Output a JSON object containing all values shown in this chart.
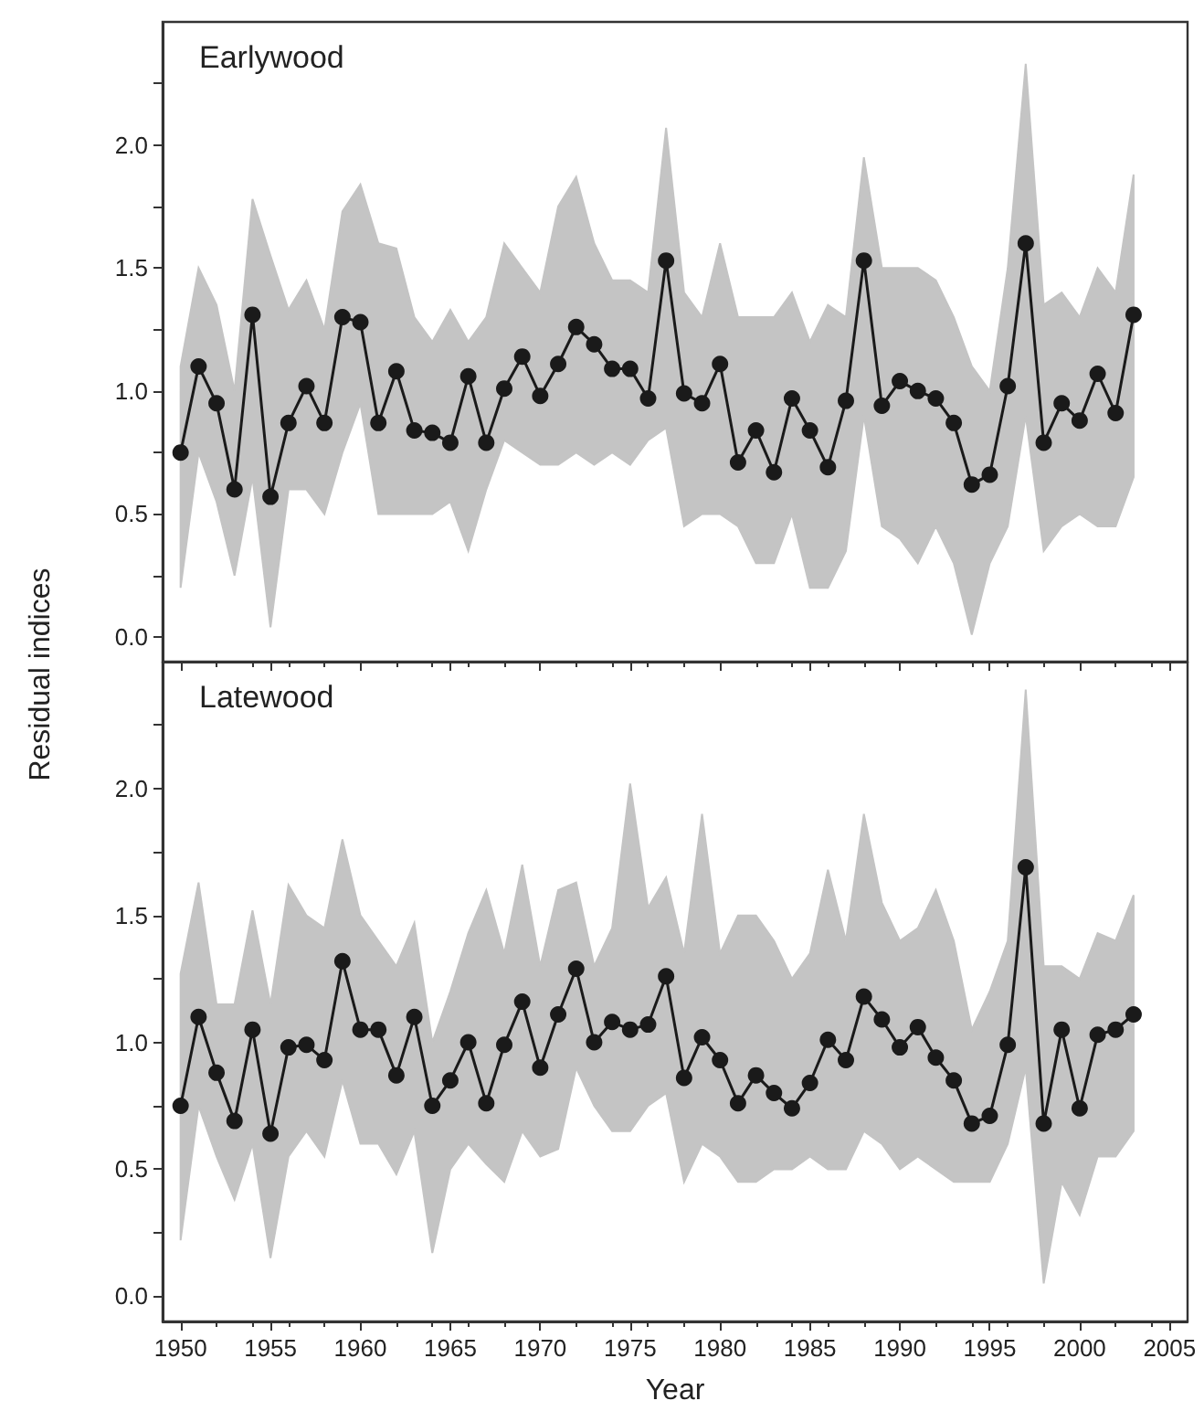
{
  "chart_data": [
    {
      "type": "line",
      "title": "Earlywood",
      "ylabel": "Residual indices",
      "tick_labels": "y",
      "marker": "circle",
      "line_style": "solid",
      "grid": false,
      "x": [
        1950,
        1951,
        1952,
        1953,
        1954,
        1955,
        1956,
        1957,
        1958,
        1959,
        1960,
        1961,
        1962,
        1963,
        1964,
        1965,
        1966,
        1967,
        1968,
        1969,
        1970,
        1971,
        1972,
        1973,
        1974,
        1975,
        1976,
        1977,
        1978,
        1979,
        1980,
        1981,
        1982,
        1983,
        1984,
        1985,
        1986,
        1987,
        1988,
        1989,
        1990,
        1991,
        1992,
        1993,
        1994,
        1995,
        1996,
        1997,
        1998,
        1999,
        2000,
        2001,
        2002,
        2003
      ],
      "xlim": [
        1949,
        2006
      ],
      "xticks": [
        {
          "value": 1950,
          "label": null
        },
        {
          "value": 1955,
          "label": null
        },
        {
          "value": 1960,
          "label": null
        },
        {
          "value": 1965,
          "label": null
        },
        {
          "value": 1970,
          "label": null
        },
        {
          "value": 1975,
          "label": null
        },
        {
          "value": 1980,
          "label": null
        },
        {
          "value": 1985,
          "label": null
        },
        {
          "value": 1990,
          "label": null
        },
        {
          "value": 1995,
          "label": null
        },
        {
          "value": 2000,
          "label": null
        },
        {
          "value": 2005,
          "label": null
        }
      ],
      "ylim": [
        -0.1,
        2.5
      ],
      "yticks": [
        {
          "value": 0,
          "label": "0.0"
        },
        {
          "value": 0.25,
          "label": null
        },
        {
          "value": 0.5,
          "label": "0.5"
        },
        {
          "value": 0.75,
          "label": null
        },
        {
          "value": 1,
          "label": "1.0"
        },
        {
          "value": 1.25,
          "label": null
        },
        {
          "value": 1.5,
          "label": "1.5"
        },
        {
          "value": 1.75,
          "label": null
        },
        {
          "value": 2,
          "label": "2.0"
        },
        {
          "value": 2.25,
          "label": null
        }
      ],
      "series": [
        {
          "color": "#1a1a1a",
          "values": [
            0.75,
            1.1,
            0.95,
            0.6,
            1.31,
            0.57,
            0.87,
            1.02,
            0.87,
            1.3,
            1.28,
            0.87,
            1.08,
            0.84,
            0.83,
            0.79,
            1.06,
            0.79,
            1.01,
            1.14,
            0.98,
            1.11,
            1.26,
            1.19,
            1.09,
            1.09,
            0.97,
            1.53,
            0.99,
            0.95,
            1.11,
            0.71,
            0.84,
            0.67,
            0.97,
            0.84,
            0.69,
            0.96,
            1.53,
            0.94,
            1.04,
            1.0,
            0.97,
            0.87,
            0.62,
            0.66,
            1.02,
            1.6,
            0.79,
            0.95,
            0.88,
            1.07,
            0.91,
            1.31
          ],
          "lower": [
            0.2,
            0.75,
            0.55,
            0.25,
            0.65,
            0.04,
            0.6,
            0.6,
            0.5,
            0.75,
            0.95,
            0.5,
            0.5,
            0.5,
            0.5,
            0.55,
            0.35,
            0.6,
            0.8,
            0.75,
            0.7,
            0.7,
            0.75,
            0.7,
            0.75,
            0.7,
            0.8,
            0.85,
            0.45,
            0.5,
            0.5,
            0.45,
            0.3,
            0.3,
            0.5,
            0.2,
            0.2,
            0.35,
            0.9,
            0.45,
            0.4,
            0.3,
            0.45,
            0.3,
            0.01,
            0.3,
            0.45,
            0.9,
            0.35,
            0.45,
            0.5,
            0.45,
            0.45,
            0.65
          ],
          "upper": [
            1.1,
            1.5,
            1.35,
            1.0,
            1.78,
            1.55,
            1.33,
            1.45,
            1.25,
            1.73,
            1.84,
            1.6,
            1.58,
            1.3,
            1.2,
            1.33,
            1.2,
            1.3,
            1.6,
            1.5,
            1.4,
            1.75,
            1.87,
            1.6,
            1.45,
            1.45,
            1.4,
            2.07,
            1.4,
            1.3,
            1.6,
            1.3,
            1.3,
            1.3,
            1.4,
            1.2,
            1.35,
            1.3,
            1.95,
            1.5,
            1.5,
            1.5,
            1.45,
            1.3,
            1.1,
            1.0,
            1.5,
            2.33,
            1.35,
            1.4,
            1.3,
            1.5,
            1.4,
            1.88
          ]
        }
      ]
    },
    {
      "type": "line",
      "title": "Latewood",
      "xlabel": "Year",
      "marker": "circle",
      "line_style": "solid",
      "grid": false,
      "x": [
        1950,
        1951,
        1952,
        1953,
        1954,
        1955,
        1956,
        1957,
        1958,
        1959,
        1960,
        1961,
        1962,
        1963,
        1964,
        1965,
        1966,
        1967,
        1968,
        1969,
        1970,
        1971,
        1972,
        1973,
        1974,
        1975,
        1976,
        1977,
        1978,
        1979,
        1980,
        1981,
        1982,
        1983,
        1984,
        1985,
        1986,
        1987,
        1988,
        1989,
        1990,
        1991,
        1992,
        1993,
        1994,
        1995,
        1996,
        1997,
        1998,
        1999,
        2000,
        2001,
        2002,
        2003
      ],
      "xlim": [
        1949,
        2006
      ],
      "xticks": [
        1950,
        1955,
        1960,
        1965,
        1970,
        1975,
        1980,
        1985,
        1990,
        1995,
        2000,
        2005
      ],
      "ylim": [
        -0.1,
        2.5
      ],
      "yticks": [
        {
          "value": 0,
          "label": "0.0"
        },
        {
          "value": 0.25,
          "label": null
        },
        {
          "value": 0.5,
          "label": "0.5"
        },
        {
          "value": 0.75,
          "label": null
        },
        {
          "value": 1,
          "label": "1.0"
        },
        {
          "value": 1.25,
          "label": null
        },
        {
          "value": 1.5,
          "label": "1.5"
        },
        {
          "value": 1.75,
          "label": null
        },
        {
          "value": 2,
          "label": "2.0"
        },
        {
          "value": 2.25,
          "label": null
        }
      ],
      "series": [
        {
          "color": "#1a1a1a",
          "values": [
            0.75,
            1.1,
            0.88,
            0.69,
            1.05,
            0.64,
            0.98,
            0.99,
            0.93,
            1.32,
            1.05,
            1.05,
            0.87,
            1.1,
            0.75,
            0.85,
            1.0,
            0.76,
            0.99,
            1.16,
            0.9,
            1.11,
            1.29,
            1.0,
            1.08,
            1.05,
            1.07,
            1.26,
            0.86,
            1.02,
            0.93,
            0.76,
            0.87,
            0.8,
            0.74,
            0.84,
            1.01,
            0.93,
            1.18,
            1.09,
            0.98,
            1.06,
            0.94,
            0.85,
            0.68,
            0.71,
            0.99,
            1.69,
            0.68,
            1.05,
            0.74,
            1.03,
            1.05,
            1.11
          ],
          "lower": [
            0.22,
            0.75,
            0.55,
            0.38,
            0.6,
            0.15,
            0.55,
            0.65,
            0.55,
            0.85,
            0.6,
            0.6,
            0.48,
            0.65,
            0.17,
            0.5,
            0.6,
            0.52,
            0.45,
            0.65,
            0.55,
            0.58,
            0.9,
            0.75,
            0.65,
            0.65,
            0.75,
            0.8,
            0.45,
            0.6,
            0.55,
            0.45,
            0.45,
            0.5,
            0.5,
            0.55,
            0.5,
            0.5,
            0.65,
            0.6,
            0.5,
            0.55,
            0.5,
            0.45,
            0.45,
            0.45,
            0.6,
            0.9,
            0.05,
            0.45,
            0.32,
            0.55,
            0.55,
            0.65
          ],
          "upper": [
            1.27,
            1.63,
            1.15,
            1.15,
            1.52,
            1.15,
            1.62,
            1.5,
            1.45,
            1.8,
            1.5,
            1.4,
            1.3,
            1.47,
            1.0,
            1.2,
            1.43,
            1.6,
            1.35,
            1.7,
            1.3,
            1.6,
            1.63,
            1.3,
            1.45,
            2.02,
            1.53,
            1.65,
            1.35,
            1.9,
            1.35,
            1.5,
            1.5,
            1.4,
            1.25,
            1.35,
            1.68,
            1.4,
            1.9,
            1.55,
            1.4,
            1.45,
            1.6,
            1.4,
            1.05,
            1.2,
            1.4,
            2.39,
            1.3,
            1.3,
            1.25,
            1.43,
            1.4,
            1.58
          ]
        }
      ]
    }
  ]
}
